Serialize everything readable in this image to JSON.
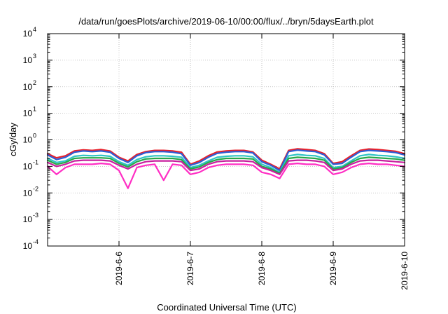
{
  "chart_data": {
    "type": "line",
    "title": "/data/run/goesPlots/archive/2019-06-10/00:00/flux/../bryn/5daysEarth.plot",
    "xlabel": "Coordinated Universal Time (UTC)",
    "ylabel": "cGy/day",
    "yscale": "log",
    "ylim": [
      0.0001,
      10000
    ],
    "xlim": [
      "2019-06-05T00:00",
      "2019-06-10T00:00"
    ],
    "grid": true,
    "x_ticks": [
      {
        "x": "2019-06-06T00:00",
        "label": "2019-6-6"
      },
      {
        "x": "2019-06-07T00:00",
        "label": "2019-6-7"
      },
      {
        "x": "2019-06-08T00:00",
        "label": "2019-6-8"
      },
      {
        "x": "2019-06-09T00:00",
        "label": "2019-6-9"
      },
      {
        "x": "2019-06-10T00:00",
        "label": "2019-6-10"
      }
    ],
    "y_ticks": [
      {
        "value": 0.0001,
        "base": "10",
        "exp": "-4"
      },
      {
        "value": 0.001,
        "base": "10",
        "exp": "-3"
      },
      {
        "value": 0.01,
        "base": "10",
        "exp": "-2"
      },
      {
        "value": 0.1,
        "base": "10",
        "exp": "-1"
      },
      {
        "value": 1,
        "base": "10",
        "exp": "0"
      },
      {
        "value": 10,
        "base": "10",
        "exp": "1"
      },
      {
        "value": 100,
        "base": "10",
        "exp": "2"
      },
      {
        "value": 1000,
        "base": "10",
        "exp": "3"
      },
      {
        "value": 10000,
        "base": "10",
        "exp": "4"
      }
    ],
    "x": [
      "2019-06-05T00:00",
      "2019-06-05T03:00",
      "2019-06-05T06:00",
      "2019-06-05T09:00",
      "2019-06-05T12:00",
      "2019-06-05T15:00",
      "2019-06-05T18:00",
      "2019-06-05T21:00",
      "2019-06-06T00:00",
      "2019-06-06T03:00",
      "2019-06-06T06:00",
      "2019-06-06T09:00",
      "2019-06-06T12:00",
      "2019-06-06T15:00",
      "2019-06-06T18:00",
      "2019-06-06T21:00",
      "2019-06-07T00:00",
      "2019-06-07T03:00",
      "2019-06-07T06:00",
      "2019-06-07T09:00",
      "2019-06-07T12:00",
      "2019-06-07T15:00",
      "2019-06-07T18:00",
      "2019-06-07T21:00",
      "2019-06-08T00:00",
      "2019-06-08T03:00",
      "2019-06-08T06:00",
      "2019-06-08T09:00",
      "2019-06-08T12:00",
      "2019-06-08T15:00",
      "2019-06-08T18:00",
      "2019-06-08T21:00",
      "2019-06-09T00:00",
      "2019-06-09T03:00",
      "2019-06-09T06:00",
      "2019-06-09T09:00",
      "2019-06-09T12:00",
      "2019-06-09T15:00",
      "2019-06-09T18:00",
      "2019-06-09T21:00",
      "2019-06-10T00:00"
    ],
    "series": [
      {
        "color": "#e8202a",
        "values": [
          0.3,
          0.21,
          0.25,
          0.38,
          0.42,
          0.4,
          0.43,
          0.38,
          0.22,
          0.16,
          0.28,
          0.36,
          0.4,
          0.4,
          0.38,
          0.34,
          0.12,
          0.16,
          0.25,
          0.35,
          0.38,
          0.4,
          0.4,
          0.35,
          0.17,
          0.12,
          0.08,
          0.4,
          0.46,
          0.43,
          0.4,
          0.3,
          0.13,
          0.15,
          0.25,
          0.4,
          0.45,
          0.43,
          0.4,
          0.37,
          0.3
        ]
      },
      {
        "color": "#2c5ed6",
        "values": [
          0.27,
          0.18,
          0.22,
          0.34,
          0.38,
          0.36,
          0.38,
          0.34,
          0.2,
          0.14,
          0.25,
          0.33,
          0.36,
          0.36,
          0.34,
          0.3,
          0.11,
          0.14,
          0.22,
          0.31,
          0.34,
          0.36,
          0.36,
          0.32,
          0.15,
          0.11,
          0.07,
          0.36,
          0.41,
          0.38,
          0.36,
          0.27,
          0.12,
          0.13,
          0.22,
          0.36,
          0.4,
          0.38,
          0.36,
          0.33,
          0.27
        ]
      },
      {
        "color": "#2ec4c4",
        "values": [
          0.2,
          0.14,
          0.16,
          0.24,
          0.26,
          0.25,
          0.26,
          0.24,
          0.15,
          0.11,
          0.18,
          0.23,
          0.25,
          0.25,
          0.24,
          0.22,
          0.09,
          0.11,
          0.16,
          0.22,
          0.24,
          0.25,
          0.25,
          0.23,
          0.12,
          0.09,
          0.06,
          0.25,
          0.28,
          0.26,
          0.25,
          0.2,
          0.09,
          0.1,
          0.16,
          0.25,
          0.28,
          0.26,
          0.25,
          0.23,
          0.2
        ]
      },
      {
        "color": "#27a84a",
        "values": [
          0.17,
          0.12,
          0.14,
          0.2,
          0.21,
          0.21,
          0.21,
          0.2,
          0.13,
          0.095,
          0.15,
          0.19,
          0.2,
          0.2,
          0.2,
          0.18,
          0.08,
          0.095,
          0.14,
          0.18,
          0.2,
          0.2,
          0.2,
          0.19,
          0.1,
          0.08,
          0.055,
          0.2,
          0.22,
          0.21,
          0.2,
          0.17,
          0.08,
          0.09,
          0.14,
          0.2,
          0.22,
          0.21,
          0.2,
          0.19,
          0.17
        ]
      },
      {
        "color": "#c81e9e",
        "values": [
          0.14,
          0.1,
          0.12,
          0.16,
          0.17,
          0.17,
          0.17,
          0.16,
          0.11,
          0.08,
          0.12,
          0.15,
          0.16,
          0.16,
          0.16,
          0.15,
          0.07,
          0.08,
          0.12,
          0.15,
          0.16,
          0.16,
          0.16,
          0.15,
          0.09,
          0.07,
          0.05,
          0.16,
          0.17,
          0.17,
          0.16,
          0.14,
          0.07,
          0.08,
          0.12,
          0.16,
          0.17,
          0.17,
          0.16,
          0.15,
          0.14
        ]
      },
      {
        "color": "#ff2ec4",
        "values": [
          0.1,
          0.05,
          0.09,
          0.12,
          0.12,
          0.12,
          0.13,
          0.12,
          0.07,
          0.015,
          0.09,
          0.11,
          0.12,
          0.03,
          0.12,
          0.11,
          0.05,
          0.06,
          0.09,
          0.11,
          0.12,
          0.12,
          0.12,
          0.11,
          0.06,
          0.05,
          0.035,
          0.12,
          0.13,
          0.12,
          0.12,
          0.1,
          0.05,
          0.06,
          0.09,
          0.12,
          0.13,
          0.12,
          0.12,
          0.11,
          0.1
        ]
      }
    ]
  }
}
